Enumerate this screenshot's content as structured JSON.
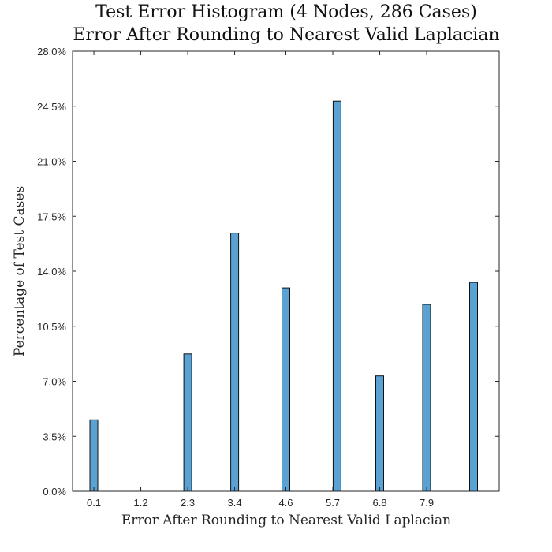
{
  "chart_data": {
    "type": "bar",
    "title": "Test Error Histogram (4 Nodes, 286 Cases)",
    "subtitle": "Error After Rounding to Nearest Valid Laplacian",
    "xlabel": "Error After Rounding to Nearest Valid Laplacian",
    "ylabel": "Percentage of Test Cases",
    "x_ticks": [
      "0.1",
      "1.2",
      "2.3",
      "3.4",
      "4.6",
      "5.7",
      "6.8",
      "7.9"
    ],
    "x_tick_values": [
      0.1,
      1.2,
      2.3,
      3.4,
      4.6,
      5.7,
      6.8,
      7.9
    ],
    "xlim": [
      -0.4,
      9.6
    ],
    "y_ticks": [
      "0.0%",
      "3.5%",
      "7.0%",
      "10.5%",
      "14.0%",
      "17.5%",
      "21.0%",
      "24.5%",
      "28.0%"
    ],
    "y_tick_values": [
      0,
      3.5,
      7,
      10.5,
      14,
      17.5,
      21,
      24.5,
      28
    ],
    "ylim": [
      0,
      28
    ],
    "bars": [
      {
        "x": 0.1,
        "value": 4.55
      },
      {
        "x": 2.3,
        "value": 8.74
      },
      {
        "x": 3.4,
        "value": 16.43
      },
      {
        "x": 4.6,
        "value": 12.94
      },
      {
        "x": 5.8,
        "value": 24.83
      },
      {
        "x": 6.8,
        "value": 7.34
      },
      {
        "x": 7.9,
        "value": 11.89
      },
      {
        "x": 9.0,
        "value": 13.29
      }
    ],
    "bar_color": "#5aa2d4",
    "grid": false
  }
}
